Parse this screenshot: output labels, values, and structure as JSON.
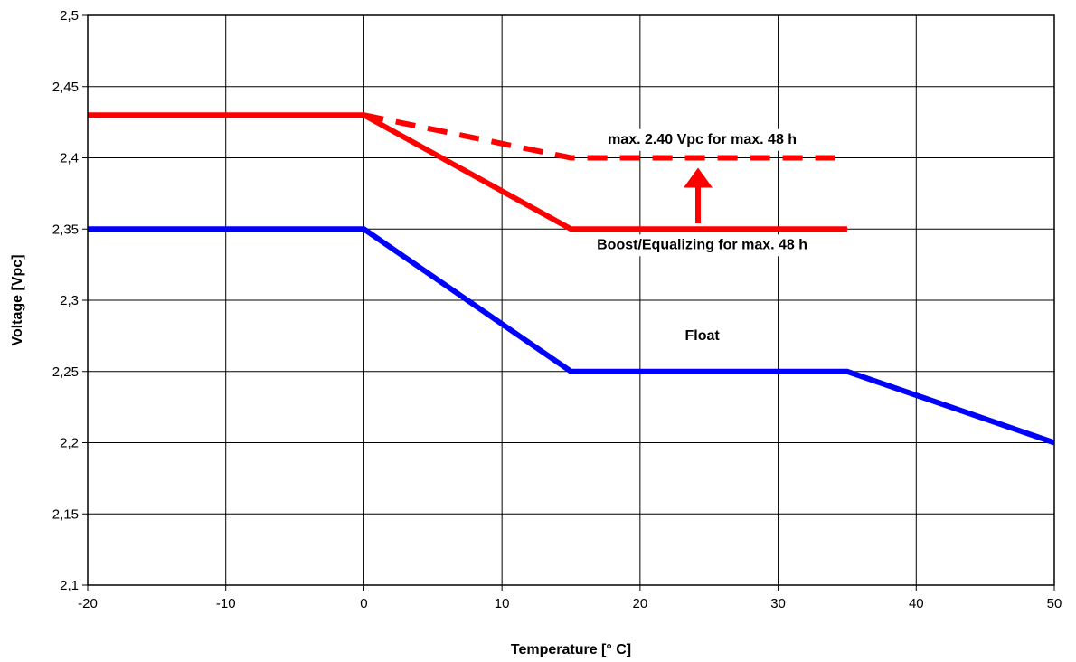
{
  "chart_data": {
    "type": "line",
    "title": "",
    "xlabel": "Temperature [° C]",
    "ylabel": "Voltage [Vpc]",
    "xlim": [
      -20,
      50
    ],
    "ylim": [
      2.1,
      2.5
    ],
    "x_ticks": [
      -20,
      -10,
      0,
      10,
      20,
      30,
      40,
      50
    ],
    "y_ticks": [
      2.1,
      2.15,
      2.2,
      2.25,
      2.3,
      2.35,
      2.4,
      2.45,
      2.5
    ],
    "x_tick_labels": [
      "-20",
      "-10",
      "0",
      "10",
      "20",
      "30",
      "40",
      "50"
    ],
    "y_tick_labels": [
      "2,1",
      "2,15",
      "2,2",
      "2,25",
      "2,3",
      "2,35",
      "2,4",
      "2,45",
      "2,5"
    ],
    "grid": true,
    "legend": "none",
    "series": [
      {
        "color": "#ff0000",
        "style": "solid",
        "points": [
          [
            -20,
            2.43
          ],
          [
            0,
            2.43
          ],
          [
            15,
            2.35
          ],
          [
            35,
            2.35
          ]
        ]
      },
      {
        "color": "#ff0000",
        "style": "dashed",
        "points": [
          [
            0,
            2.43
          ],
          [
            15,
            2.4
          ],
          [
            35,
            2.4
          ]
        ]
      },
      {
        "color": "#0000ff",
        "style": "solid",
        "points": [
          [
            -20,
            2.35
          ],
          [
            0,
            2.35
          ],
          [
            15,
            2.25
          ],
          [
            35,
            2.25
          ],
          [
            50,
            2.2
          ]
        ]
      }
    ],
    "annotations": [
      {
        "id": "max",
        "text": "max. 2.40 Vpc for max. 48 h",
        "x": 24.5,
        "y": 2.41
      },
      {
        "id": "boost",
        "text": "Boost/Equalizing for max. 48 h",
        "x": 24.5,
        "y": 2.336
      },
      {
        "id": "float",
        "text": "Float",
        "x": 24.5,
        "y": 2.272
      }
    ],
    "arrow": {
      "color": "#ff0000",
      "x": 24.2,
      "from_y": 2.354,
      "to_y": 2.393
    }
  }
}
